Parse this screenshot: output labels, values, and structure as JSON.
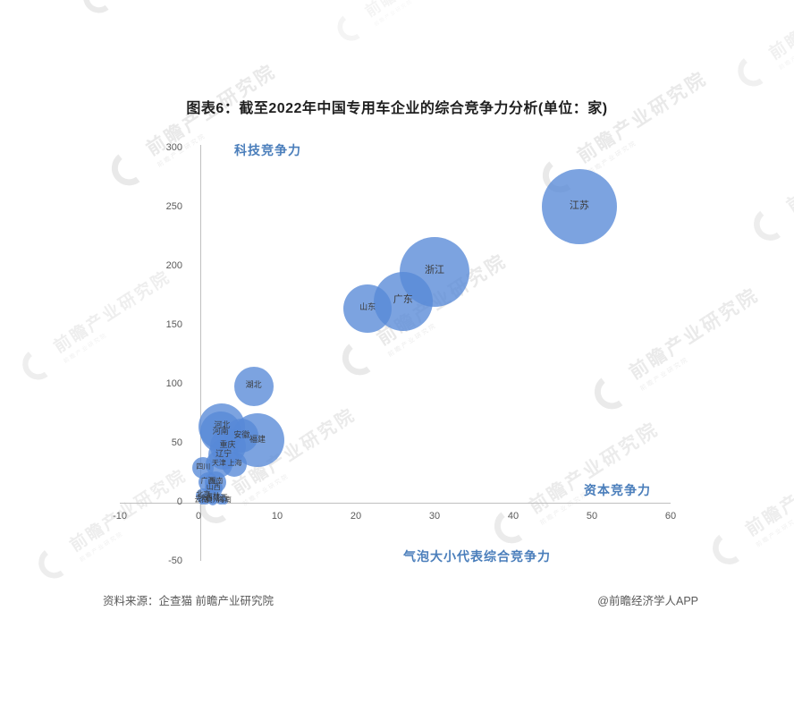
{
  "title": "图表6：截至2022年中国专用车企业的综合竞争力分析(单位：家)",
  "axis_labels": {
    "y": "科技竞争力",
    "x": "资本竞争力",
    "bubble_note": "气泡大小代表综合竞争力"
  },
  "footer": {
    "source": "资料来源：企查猫 前瞻产业研究院",
    "credit": "@前瞻经济学人APP"
  },
  "watermark": {
    "text": "前瞻产业研究院"
  },
  "colors": {
    "bubble_fill": "rgba(87,137,215,0.78)",
    "blue_label": "#4a7ebb",
    "tick_text": "#595959",
    "axis_line": "#bfbfbf",
    "bubble_label_text": "#3b3b3b",
    "title_text": "#1f1f1f"
  },
  "chart_data": {
    "type": "scatter",
    "subtype": "bubble",
    "title": "图表6：截至2022年中国专用车企业的综合竞争力分析(单位：家)",
    "xlabel": "资本竞争力",
    "ylabel": "科技竞争力",
    "size_note": "气泡大小代表综合竞争力",
    "xlim": [
      -10,
      60
    ],
    "ylim": [
      -50,
      300
    ],
    "x_ticks": [
      -10,
      0,
      10,
      20,
      30,
      40,
      50,
      60
    ],
    "y_ticks": [
      300,
      250,
      200,
      150,
      100,
      50,
      0,
      -50
    ],
    "grid": false,
    "bubbles": [
      {
        "name": "江苏",
        "x": 48.4,
        "y": 250,
        "r": 42
      },
      {
        "name": "浙江",
        "x": 30,
        "y": 195,
        "r": 39
      },
      {
        "name": "广东",
        "x": 26,
        "y": 170,
        "r": 33
      },
      {
        "name": "山东",
        "x": 21.5,
        "y": 164,
        "r": 27
      },
      {
        "name": "湖北",
        "x": 7,
        "y": 98,
        "r": 22
      },
      {
        "name": "福建",
        "x": 7.5,
        "y": 52,
        "r": 30
      },
      {
        "name": "河北",
        "x": 3,
        "y": 64,
        "r": 26
      },
      {
        "name": "河南",
        "x": 2.8,
        "y": 59,
        "r": 23
      },
      {
        "name": "安徽",
        "x": 5.5,
        "y": 56,
        "r": 19
      },
      {
        "name": "重庆",
        "x": 3.7,
        "y": 47,
        "r": 20
      },
      {
        "name": "辽宁",
        "x": 3.2,
        "y": 40,
        "r": 17
      },
      {
        "name": "天津",
        "x": 2.6,
        "y": 32,
        "r": 15
      },
      {
        "name": "上海",
        "x": 4.6,
        "y": 32,
        "r": 14
      },
      {
        "name": "四川",
        "x": 0.6,
        "y": 29,
        "r": 12
      },
      {
        "name": "湖南",
        "x": 2.2,
        "y": 17,
        "r": 12
      },
      {
        "name": "广西",
        "x": 1.2,
        "y": 17,
        "r": 11
      },
      {
        "name": "山西",
        "x": 1.9,
        "y": 11,
        "r": 10
      },
      {
        "name": "北京",
        "x": 0.6,
        "y": 5,
        "r": 8
      },
      {
        "name": "吉林",
        "x": 1.8,
        "y": 4,
        "r": 7
      },
      {
        "name": "陕西",
        "x": 0.9,
        "y": 2,
        "r": 6
      },
      {
        "name": "江西",
        "x": 2.8,
        "y": 2,
        "r": 6
      },
      {
        "name": "贵州",
        "x": 1.8,
        "y": 1,
        "r": 5
      },
      {
        "name": "云南",
        "x": 0.4,
        "y": 1,
        "r": 4
      },
      {
        "name": "海南",
        "x": 3.3,
        "y": 1,
        "r": 4
      }
    ]
  }
}
